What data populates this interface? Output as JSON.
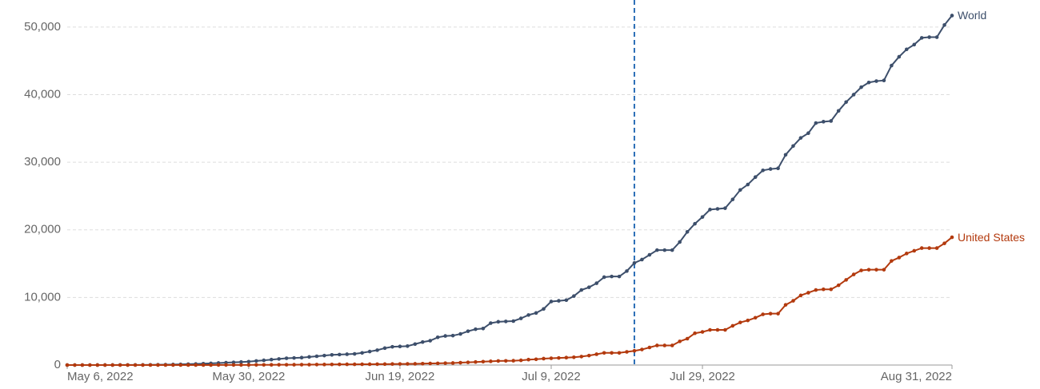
{
  "chart_data": {
    "type": "line",
    "x": [
      "2022-05-06",
      "2022-05-07",
      "2022-05-08",
      "2022-05-09",
      "2022-05-10",
      "2022-05-11",
      "2022-05-12",
      "2022-05-13",
      "2022-05-14",
      "2022-05-15",
      "2022-05-16",
      "2022-05-17",
      "2022-05-18",
      "2022-05-19",
      "2022-05-20",
      "2022-05-21",
      "2022-05-22",
      "2022-05-23",
      "2022-05-24",
      "2022-05-25",
      "2022-05-26",
      "2022-05-27",
      "2022-05-28",
      "2022-05-29",
      "2022-05-30",
      "2022-05-31",
      "2022-06-01",
      "2022-06-02",
      "2022-06-03",
      "2022-06-04",
      "2022-06-05",
      "2022-06-06",
      "2022-06-07",
      "2022-06-08",
      "2022-06-09",
      "2022-06-10",
      "2022-06-11",
      "2022-06-12",
      "2022-06-13",
      "2022-06-14",
      "2022-06-15",
      "2022-06-16",
      "2022-06-17",
      "2022-06-18",
      "2022-06-19",
      "2022-06-20",
      "2022-06-21",
      "2022-06-22",
      "2022-06-23",
      "2022-06-24",
      "2022-06-25",
      "2022-06-26",
      "2022-06-27",
      "2022-06-28",
      "2022-06-29",
      "2022-06-30",
      "2022-07-01",
      "2022-07-02",
      "2022-07-03",
      "2022-07-04",
      "2022-07-05",
      "2022-07-06",
      "2022-07-07",
      "2022-07-08",
      "2022-07-09",
      "2022-07-10",
      "2022-07-11",
      "2022-07-12",
      "2022-07-13",
      "2022-07-14",
      "2022-07-15",
      "2022-07-16",
      "2022-07-17",
      "2022-07-18",
      "2022-07-19",
      "2022-07-20",
      "2022-07-21",
      "2022-07-22",
      "2022-07-23",
      "2022-07-24",
      "2022-07-25",
      "2022-07-26",
      "2022-07-27",
      "2022-07-28",
      "2022-07-29",
      "2022-07-30",
      "2022-07-31",
      "2022-08-01",
      "2022-08-02",
      "2022-08-03",
      "2022-08-04",
      "2022-08-05",
      "2022-08-06",
      "2022-08-07",
      "2022-08-08",
      "2022-08-09",
      "2022-08-10",
      "2022-08-11",
      "2022-08-12",
      "2022-08-13",
      "2022-08-14",
      "2022-08-15",
      "2022-08-16",
      "2022-08-17",
      "2022-08-18",
      "2022-08-19",
      "2022-08-20",
      "2022-08-21",
      "2022-08-22",
      "2022-08-23",
      "2022-08-24",
      "2022-08-25",
      "2022-08-26",
      "2022-08-27",
      "2022-08-28",
      "2022-08-29",
      "2022-08-30",
      "2022-08-31"
    ],
    "series": [
      {
        "name": "World",
        "color": "#3d4f6b",
        "values": [
          0,
          0,
          1,
          1,
          2,
          3,
          5,
          8,
          10,
          15,
          20,
          30,
          45,
          60,
          80,
          100,
          130,
          160,
          200,
          250,
          300,
          350,
          400,
          450,
          500,
          600,
          700,
          800,
          900,
          1000,
          1050,
          1100,
          1200,
          1300,
          1400,
          1500,
          1550,
          1600,
          1650,
          1800,
          2000,
          2200,
          2500,
          2700,
          2750,
          2800,
          3100,
          3400,
          3600,
          4100,
          4300,
          4350,
          4600,
          5000,
          5300,
          5400,
          6200,
          6400,
          6450,
          6500,
          6900,
          7400,
          7700,
          8300,
          9400,
          9500,
          9600,
          10200,
          11100,
          11500,
          12100,
          13000,
          13100,
          13100,
          13900,
          15100,
          15600,
          16300,
          17000,
          17000,
          17000,
          18200,
          19700,
          20900,
          21900,
          23000,
          23100,
          23200,
          24500,
          25900,
          26700,
          27800,
          28800,
          29000,
          29100,
          31100,
          32400,
          33600,
          34300,
          35800,
          36000,
          36100,
          37600,
          38900,
          40000,
          41100,
          41800,
          42000,
          42100,
          44300,
          45600,
          46700,
          47400,
          48400,
          48500,
          48500,
          50300,
          51700
        ]
      },
      {
        "name": "United States",
        "color": "#b33a0e",
        "values": [
          0,
          0,
          0,
          0,
          0,
          0,
          0,
          0,
          0,
          0,
          0,
          0,
          0,
          0,
          0,
          1,
          2,
          3,
          5,
          7,
          9,
          11,
          13,
          16,
          20,
          25,
          30,
          35,
          40,
          45,
          50,
          55,
          60,
          70,
          80,
          90,
          100,
          105,
          110,
          115,
          120,
          130,
          140,
          150,
          160,
          170,
          180,
          200,
          230,
          250,
          280,
          300,
          350,
          400,
          450,
          500,
          550,
          600,
          620,
          640,
          700,
          800,
          850,
          950,
          1000,
          1050,
          1100,
          1150,
          1250,
          1400,
          1600,
          1800,
          1800,
          1800,
          1950,
          2100,
          2300,
          2600,
          2900,
          2900,
          2900,
          3500,
          3900,
          4700,
          4900,
          5200,
          5200,
          5200,
          5800,
          6300,
          6600,
          7000,
          7500,
          7600,
          7600,
          8900,
          9500,
          10300,
          10700,
          11100,
          11200,
          11200,
          11800,
          12600,
          13400,
          14000,
          14100,
          14100,
          14100,
          15400,
          15900,
          16500,
          16900,
          17300,
          17300,
          17300,
          18000,
          18900
        ]
      }
    ],
    "xlim": [
      "2022-05-06",
      "2022-08-31"
    ],
    "xticks": [
      {
        "value": "2022-05-06",
        "label": "May 6, 2022"
      },
      {
        "value": "2022-05-30",
        "label": "May 30, 2022"
      },
      {
        "value": "2022-06-19",
        "label": "Jun 19, 2022"
      },
      {
        "value": "2022-07-09",
        "label": "Jul 9, 2022"
      },
      {
        "value": "2022-07-29",
        "label": "Jul 29, 2022"
      },
      {
        "value": "2022-08-31",
        "label": "Aug 31, 2022"
      }
    ],
    "ylim": [
      0,
      54000
    ],
    "yticks": [
      0,
      {
        "value": 10000,
        "label": "10,000"
      },
      {
        "value": 20000,
        "label": "20,000"
      },
      {
        "value": 30000,
        "label": "30,000"
      },
      {
        "value": 40000,
        "label": "40,000"
      },
      {
        "value": 50000,
        "label": "50,000"
      }
    ],
    "grid": true,
    "marker_x": "2022-07-20",
    "marker_color": "#2c6fb7"
  }
}
